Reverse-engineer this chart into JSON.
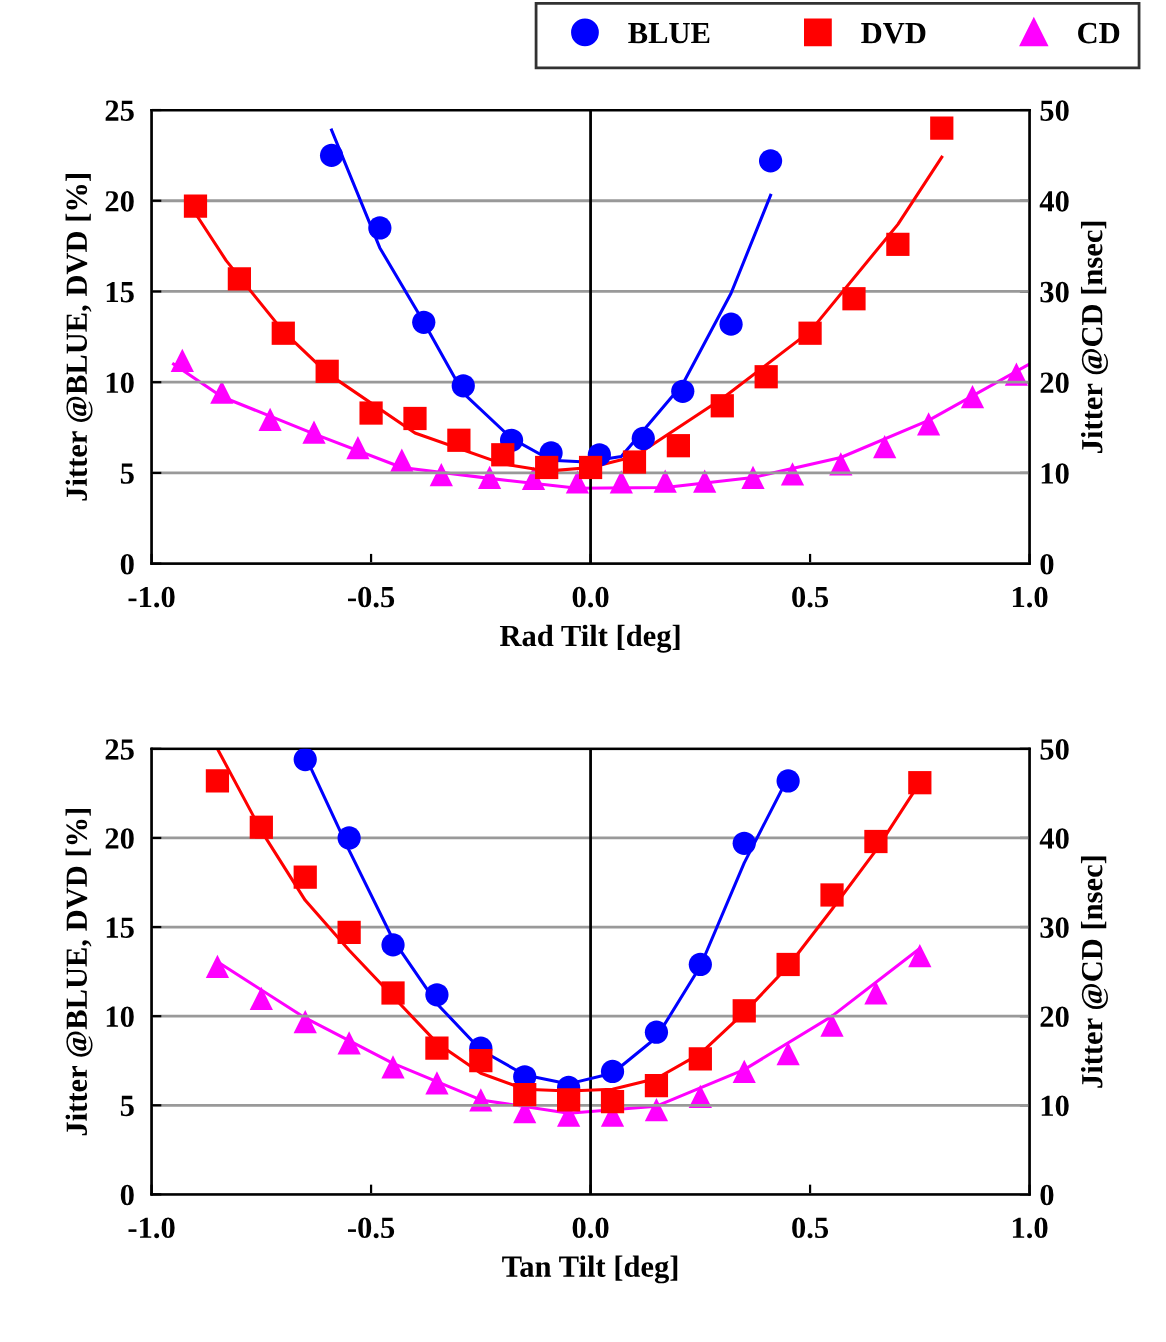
{
  "chart_data": [
    {
      "type": "scatter",
      "xlabel": "Rad Tilt [deg]",
      "ylabel": "Jitter @BLUE, DVD [%]",
      "y2label": "Jitter @CD [nsec]",
      "xlim": [
        -1.0,
        1.0
      ],
      "xticks": [
        {
          "value": -1.0,
          "label": "-1.0"
        },
        {
          "value": -0.5,
          "label": "-0.5"
        },
        {
          "value": 0.0,
          "label": "0.0"
        },
        {
          "value": 0.5,
          "label": "0.5"
        },
        {
          "value": 1.0,
          "label": "1.0"
        }
      ],
      "ylim": [
        0,
        25
      ],
      "yticks": [
        0,
        5,
        10,
        15,
        20,
        25
      ],
      "y2lim": [
        0,
        50
      ],
      "y2ticks": [
        0,
        10,
        20,
        30,
        40,
        50
      ],
      "grid": "y",
      "legend": "top right",
      "ref_lines": [
        {
          "axis": "x",
          "value": 0,
          "color": "#000000"
        }
      ],
      "series": [
        {
          "name": "BLUE",
          "marker": "circle",
          "color": "#0000ff",
          "x": [
            -0.59,
            -0.48,
            -0.38,
            -0.29,
            -0.18,
            -0.09,
            0.02,
            0.12,
            0.21,
            0.32,
            0.41
          ],
          "values": [
            22.5,
            18.5,
            13.3,
            9.8,
            6.8,
            6.1,
            6.0,
            6.9,
            9.5,
            13.2,
            22.2
          ]
        },
        {
          "name": "DVD",
          "marker": "square",
          "color": "#ff0000",
          "x": [
            -0.9,
            -0.8,
            -0.7,
            -0.6,
            -0.5,
            -0.4,
            -0.3,
            -0.2,
            -0.1,
            0.0,
            0.1,
            0.2,
            0.3,
            0.4,
            0.5,
            0.6,
            0.7,
            0.8
          ],
          "values": [
            19.7,
            15.7,
            12.7,
            10.6,
            8.3,
            8.0,
            6.8,
            6.0,
            5.3,
            5.3,
            5.6,
            6.5,
            8.7,
            10.3,
            12.7,
            14.6,
            17.6,
            24.0
          ]
        },
        {
          "name": "CD",
          "marker": "triangle",
          "color": "#ff00ff",
          "axis": "y2",
          "x": [
            -0.93,
            -0.84,
            -0.73,
            -0.63,
            -0.53,
            -0.43,
            -0.34,
            -0.23,
            -0.13,
            -0.03,
            0.07,
            0.17,
            0.26,
            0.37,
            0.46,
            0.57,
            0.67,
            0.77,
            0.87,
            0.97
          ],
          "values": [
            22.4,
            18.9,
            15.9,
            14.5,
            12.8,
            11.4,
            9.8,
            9.5,
            9.4,
            9.0,
            9.0,
            9.1,
            9.1,
            9.5,
            9.9,
            11.0,
            12.9,
            15.4,
            18.4,
            20.9
          ]
        },
        {
          "type": "line",
          "color": "#0000ff",
          "x": [
            -0.59,
            -0.48,
            -0.38,
            -0.29,
            -0.18,
            -0.09,
            -0.01,
            0.07,
            0.21,
            0.32,
            0.41
          ],
          "values": [
            23.9,
            17.4,
            13.3,
            9.4,
            6.9,
            5.7,
            5.6,
            5.9,
            9.9,
            14.9,
            20.3
          ]
        },
        {
          "type": "line",
          "color": "#ff0000",
          "x": [
            -0.9,
            -0.83,
            -0.7,
            -0.6,
            -0.4,
            -0.2,
            -0.1,
            0.0,
            0.1,
            0.3,
            0.5,
            0.7,
            0.8
          ],
          "values": [
            19.3,
            16.7,
            12.8,
            10.5,
            7.2,
            5.5,
            5.1,
            5.3,
            5.9,
            9.1,
            12.8,
            18.7,
            22.4
          ]
        },
        {
          "type": "line",
          "color": "#ff00ff",
          "axis": "y2",
          "x": [
            -0.95,
            -0.84,
            -0.63,
            -0.43,
            -0.23,
            -0.03,
            0.17,
            0.37,
            0.57,
            0.77,
            1.0
          ],
          "values": [
            22.0,
            18.4,
            14.3,
            10.6,
            9.4,
            8.3,
            8.4,
            9.5,
            11.7,
            15.8,
            22.0
          ]
        }
      ]
    },
    {
      "type": "scatter",
      "xlabel": "Tan Tilt [deg]",
      "ylabel": "Jitter @BLUE, DVD [%]",
      "y2label": "Jitter @CD [nsec]",
      "xlim": [
        -1.0,
        1.0
      ],
      "xticks": [
        {
          "value": -1.0,
          "label": "-1.0"
        },
        {
          "value": -0.5,
          "label": "-0.5"
        },
        {
          "value": 0.0,
          "label": "0.0"
        },
        {
          "value": 0.5,
          "label": "0.5"
        },
        {
          "value": 1.0,
          "label": "1.0"
        }
      ],
      "ylim": [
        0,
        25
      ],
      "yticks": [
        0,
        5,
        10,
        15,
        20,
        25
      ],
      "y2lim": [
        0,
        50
      ],
      "y2ticks": [
        0,
        10,
        20,
        30,
        40,
        50
      ],
      "grid": "y",
      "ref_lines": [
        {
          "axis": "x",
          "value": 0,
          "color": "#000000"
        }
      ],
      "series": [
        {
          "marker": "circle",
          "color": "#0000ff",
          "x": [
            -0.65,
            -0.55,
            -0.45,
            -0.35,
            -0.25,
            -0.15,
            -0.05,
            0.05,
            0.15,
            0.25,
            0.35,
            0.45
          ],
          "values": [
            24.4,
            20.0,
            14.0,
            11.2,
            8.2,
            6.6,
            6.0,
            6.9,
            9.1,
            12.9,
            19.7,
            23.2
          ]
        },
        {
          "marker": "square",
          "color": "#ff0000",
          "x": [
            -0.85,
            -0.75,
            -0.65,
            -0.55,
            -0.45,
            -0.35,
            -0.25,
            -0.15,
            -0.05,
            0.05,
            0.15,
            0.25,
            0.35,
            0.45,
            0.55,
            0.65,
            0.75
          ],
          "values": [
            23.2,
            20.6,
            17.8,
            14.7,
            11.3,
            8.2,
            7.5,
            5.6,
            5.3,
            5.2,
            6.1,
            7.6,
            10.3,
            12.9,
            16.8,
            19.8,
            23.1
          ]
        },
        {
          "marker": "triangle",
          "color": "#ff00ff",
          "axis": "y2",
          "x": [
            -0.85,
            -0.75,
            -0.65,
            -0.55,
            -0.45,
            -0.35,
            -0.25,
            -0.15,
            -0.05,
            0.05,
            0.15,
            0.25,
            0.35,
            0.45,
            0.55,
            0.65,
            0.75
          ],
          "values": [
            25.6,
            22.0,
            19.4,
            17.0,
            14.3,
            12.5,
            10.6,
            9.3,
            8.9,
            8.9,
            9.5,
            11.0,
            13.8,
            15.8,
            19.0,
            22.6,
            26.8
          ]
        },
        {
          "type": "line",
          "color": "#0000ff",
          "x": [
            -0.65,
            -0.55,
            -0.45,
            -0.35,
            -0.25,
            -0.15,
            -0.05,
            0.05,
            0.15,
            0.25,
            0.35,
            0.45
          ],
          "values": [
            24.6,
            19.3,
            14.3,
            10.7,
            8.1,
            6.7,
            6.2,
            6.8,
            8.8,
            12.8,
            18.6,
            23.4
          ]
        },
        {
          "type": "line",
          "color": "#ff0000",
          "x": [
            -0.85,
            -0.75,
            -0.65,
            -0.55,
            -0.45,
            -0.35,
            -0.25,
            -0.15,
            -0.05,
            0.05,
            0.15,
            0.25,
            0.35,
            0.45,
            0.55,
            0.65,
            0.75
          ],
          "values": [
            25.0,
            20.4,
            16.5,
            13.7,
            11.1,
            8.5,
            6.8,
            5.9,
            5.8,
            5.9,
            6.5,
            7.9,
            10.2,
            12.8,
            16.0,
            19.3,
            23.1
          ]
        },
        {
          "type": "line",
          "color": "#ff00ff",
          "axis": "y2",
          "x": [
            -0.85,
            -0.65,
            -0.45,
            -0.25,
            -0.05,
            0.15,
            0.35,
            0.55,
            0.75
          ],
          "values": [
            26.1,
            19.8,
            14.7,
            10.6,
            9.1,
            9.9,
            14.0,
            20.0,
            27.6
          ]
        }
      ]
    }
  ]
}
